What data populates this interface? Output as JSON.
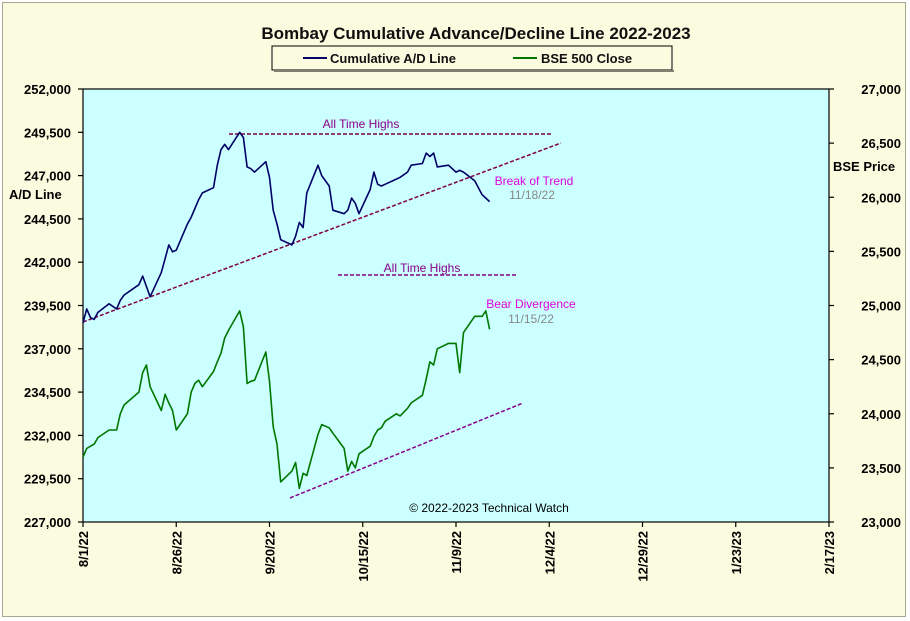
{
  "chart_data": {
    "type": "line",
    "title": "Bombay Cumulative Advance/Decline Line 2022-2023",
    "copyright": "© 2022-2023 Technical Watch",
    "ylabel_left": "A/D Line",
    "ylabel_right": "BSE Price",
    "x_ticks": [
      "8/1/22",
      "8/26/22",
      "9/20/22",
      "10/15/22",
      "11/9/22",
      "12/4/22",
      "12/29/22",
      "1/23/23",
      "2/17/23"
    ],
    "x_range": [
      "2022-08-01",
      "2023-02-17"
    ],
    "y_left_ticks": [
      "252,000",
      "249,500",
      "247,000",
      "244,500",
      "242,000",
      "239,500",
      "237,000",
      "234,500",
      "232,000",
      "229,500",
      "227,000"
    ],
    "y_left_range": [
      227000,
      252000
    ],
    "y_right_ticks": [
      "27,000",
      "26,500",
      "26,000",
      "25,500",
      "25,000",
      "24,500",
      "24,000",
      "23,500",
      "23,000"
    ],
    "y_right_range": [
      23000,
      27000
    ],
    "grid": false,
    "legend": "top-center",
    "colors": {
      "plot_bg": "#ccffff",
      "ad_line": "#000066",
      "bse_line": "#007700",
      "dashed": "#800040",
      "purple": "#880088",
      "magenta": "#dd00dd",
      "date_gray": "#888888"
    },
    "series": [
      {
        "name": "Cumulative A/D Line",
        "axis": "left",
        "x": [
          "2022-08-01",
          "2022-08-02",
          "2022-08-03",
          "2022-08-04",
          "2022-08-05",
          "2022-08-08",
          "2022-08-10",
          "2022-08-11",
          "2022-08-12",
          "2022-08-16",
          "2022-08-17",
          "2022-08-18",
          "2022-08-19",
          "2022-08-22",
          "2022-08-23",
          "2022-08-24",
          "2022-08-25",
          "2022-08-26",
          "2022-08-29",
          "2022-08-30",
          "2022-08-31",
          "2022-09-01",
          "2022-09-02",
          "2022-09-05",
          "2022-09-06",
          "2022-09-07",
          "2022-09-08",
          "2022-09-09",
          "2022-09-12",
          "2022-09-13",
          "2022-09-14",
          "2022-09-15",
          "2022-09-16",
          "2022-09-19",
          "2022-09-20",
          "2022-09-21",
          "2022-09-22",
          "2022-09-23",
          "2022-09-26",
          "2022-09-27",
          "2022-09-28",
          "2022-09-29",
          "2022-09-30",
          "2022-10-03",
          "2022-10-04",
          "2022-10-06",
          "2022-10-07",
          "2022-10-10",
          "2022-10-11",
          "2022-10-12",
          "2022-10-13",
          "2022-10-14",
          "2022-10-17",
          "2022-10-18",
          "2022-10-19",
          "2022-10-20",
          "2022-10-21",
          "2022-10-24",
          "2022-10-25",
          "2022-10-27",
          "2022-10-28",
          "2022-10-31",
          "2022-11-01",
          "2022-11-02",
          "2022-11-03",
          "2022-11-04",
          "2022-11-07",
          "2022-11-09",
          "2022-11-10",
          "2022-11-11",
          "2022-11-14",
          "2022-11-15",
          "2022-11-16",
          "2022-11-17",
          "2022-11-18"
        ],
        "values": [
          238500,
          239300,
          238800,
          238700,
          239100,
          239600,
          239300,
          239800,
          240100,
          240700,
          241200,
          240600,
          240000,
          241400,
          242200,
          243000,
          242600,
          242700,
          244200,
          244600,
          245100,
          245600,
          246000,
          246300,
          247600,
          248500,
          248800,
          248500,
          249500,
          249200,
          247500,
          247400,
          247200,
          247800,
          246900,
          245000,
          244200,
          243300,
          243000,
          243500,
          244300,
          244000,
          246000,
          247600,
          247000,
          246400,
          245000,
          244800,
          245000,
          245700,
          245400,
          244800,
          246200,
          247200,
          246500,
          246400,
          246500,
          246800,
          246900,
          247200,
          247600,
          247700,
          248300,
          248100,
          248300,
          247500,
          247600,
          247200,
          247300,
          247200,
          246700,
          246300,
          245900,
          245700,
          245500
        ]
      },
      {
        "name": "BSE 500 Close",
        "axis": "right",
        "x": [
          "2022-08-01",
          "2022-08-02",
          "2022-08-03",
          "2022-08-04",
          "2022-08-05",
          "2022-08-08",
          "2022-08-10",
          "2022-08-11",
          "2022-08-12",
          "2022-08-16",
          "2022-08-17",
          "2022-08-18",
          "2022-08-19",
          "2022-08-22",
          "2022-08-23",
          "2022-08-24",
          "2022-08-25",
          "2022-08-26",
          "2022-08-29",
          "2022-08-30",
          "2022-08-31",
          "2022-09-01",
          "2022-09-02",
          "2022-09-05",
          "2022-09-06",
          "2022-09-07",
          "2022-09-08",
          "2022-09-09",
          "2022-09-12",
          "2022-09-13",
          "2022-09-14",
          "2022-09-15",
          "2022-09-16",
          "2022-09-19",
          "2022-09-20",
          "2022-09-21",
          "2022-09-22",
          "2022-09-23",
          "2022-09-26",
          "2022-09-27",
          "2022-09-28",
          "2022-09-29",
          "2022-09-30",
          "2022-10-03",
          "2022-10-04",
          "2022-10-06",
          "2022-10-07",
          "2022-10-10",
          "2022-10-11",
          "2022-10-12",
          "2022-10-13",
          "2022-10-14",
          "2022-10-17",
          "2022-10-18",
          "2022-10-19",
          "2022-10-20",
          "2022-10-21",
          "2022-10-24",
          "2022-10-25",
          "2022-10-27",
          "2022-10-28",
          "2022-10-31",
          "2022-11-01",
          "2022-11-02",
          "2022-11-03",
          "2022-11-04",
          "2022-11-07",
          "2022-11-09",
          "2022-11-10",
          "2022-11-11",
          "2022-11-14",
          "2022-11-15",
          "2022-11-16",
          "2022-11-17",
          "2022-11-18"
        ],
        "values": [
          23600,
          23680,
          23700,
          23720,
          23780,
          23850,
          23850,
          24000,
          24080,
          24200,
          24380,
          24450,
          24250,
          24030,
          24180,
          24100,
          24030,
          23850,
          24000,
          24200,
          24280,
          24310,
          24250,
          24390,
          24480,
          24560,
          24700,
          24770,
          24950,
          24800,
          24280,
          24300,
          24310,
          24570,
          24300,
          23880,
          23720,
          23370,
          23470,
          23550,
          23310,
          23450,
          23430,
          23810,
          23900,
          23870,
          23820,
          23680,
          23470,
          23560,
          23500,
          23630,
          23700,
          23790,
          23850,
          23870,
          23930,
          24000,
          23980,
          24050,
          24100,
          24170,
          24320,
          24480,
          24450,
          24600,
          24650,
          24650,
          24380,
          24750,
          24900,
          24900,
          24900,
          24950,
          24780
        ]
      }
    ],
    "annotations": [
      {
        "label": "All Time Highs",
        "color": "#880088"
      },
      {
        "label": "Break of Trend",
        "date": "11/18/22",
        "color": "#dd00dd"
      },
      {
        "label": "All Time Highs",
        "color": "#880088"
      },
      {
        "label": "Bear Divergence",
        "date": "11/15/22",
        "color": "#dd00dd"
      }
    ]
  }
}
